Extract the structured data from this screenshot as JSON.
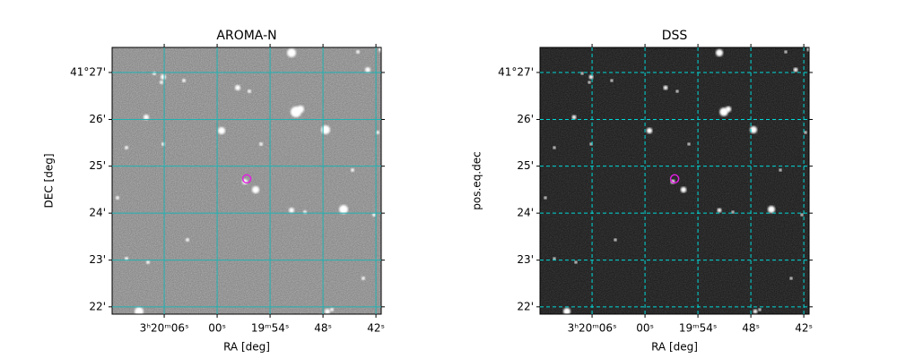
{
  "chart_data": [
    {
      "type": "image",
      "title": "AROMA-N",
      "xlabel": "RA [deg]",
      "ylabel": "DEC [deg]",
      "xlim": [
        50.0496,
        49.9225
      ],
      "ylim": [
        41.3641,
        41.4589
      ],
      "xticks": [
        {
          "value": 50.025,
          "label": "3ʰ20ᵐ06ˢ"
        },
        {
          "value": 50.0,
          "label": "00ˢ"
        },
        {
          "value": 49.975,
          "label": "19ᵐ54ˢ"
        },
        {
          "value": 49.95,
          "label": "48ˢ"
        },
        {
          "value": 49.925,
          "label": "42ˢ"
        }
      ],
      "yticks": [
        {
          "value": 41.45,
          "label": "41°27'"
        },
        {
          "value": 41.4333,
          "label": "26'"
        },
        {
          "value": 41.4167,
          "label": "25'"
        },
        {
          "value": 41.4,
          "label": "24'"
        },
        {
          "value": 41.3833,
          "label": "23'"
        },
        {
          "value": 41.3667,
          "label": "22'"
        }
      ],
      "grid": true,
      "grid_color": "#20b2b2",
      "grid_style": "solid",
      "marker": {
        "x": 49.986,
        "y": 41.4122,
        "color": "#e020e0"
      }
    },
    {
      "type": "image",
      "title": "DSS",
      "xlabel": "RA [deg]",
      "ylabel": "pos.eq.dec",
      "xlim": [
        50.0496,
        49.9225
      ],
      "ylim": [
        41.3641,
        41.4589
      ],
      "xticks": [
        {
          "value": 50.025,
          "label": "3ʰ20ᵐ06ˢ"
        },
        {
          "value": 50.0,
          "label": "00ˢ"
        },
        {
          "value": 49.975,
          "label": "19ᵐ54ˢ"
        },
        {
          "value": 49.95,
          "label": "48ˢ"
        },
        {
          "value": 49.925,
          "label": "42ˢ"
        }
      ],
      "yticks": [
        {
          "value": 41.45,
          "label": "41°27'"
        },
        {
          "value": 41.4333,
          "label": "26'"
        },
        {
          "value": 41.4167,
          "label": "25'"
        },
        {
          "value": 41.4,
          "label": "24'"
        },
        {
          "value": 41.3833,
          "label": "23'"
        },
        {
          "value": 41.3667,
          "label": "22'"
        }
      ],
      "grid": true,
      "grid_color": "#00d8d8",
      "grid_style": "dashed",
      "marker": {
        "x": 49.986,
        "y": 41.4122,
        "color": "#e020e0"
      }
    }
  ]
}
